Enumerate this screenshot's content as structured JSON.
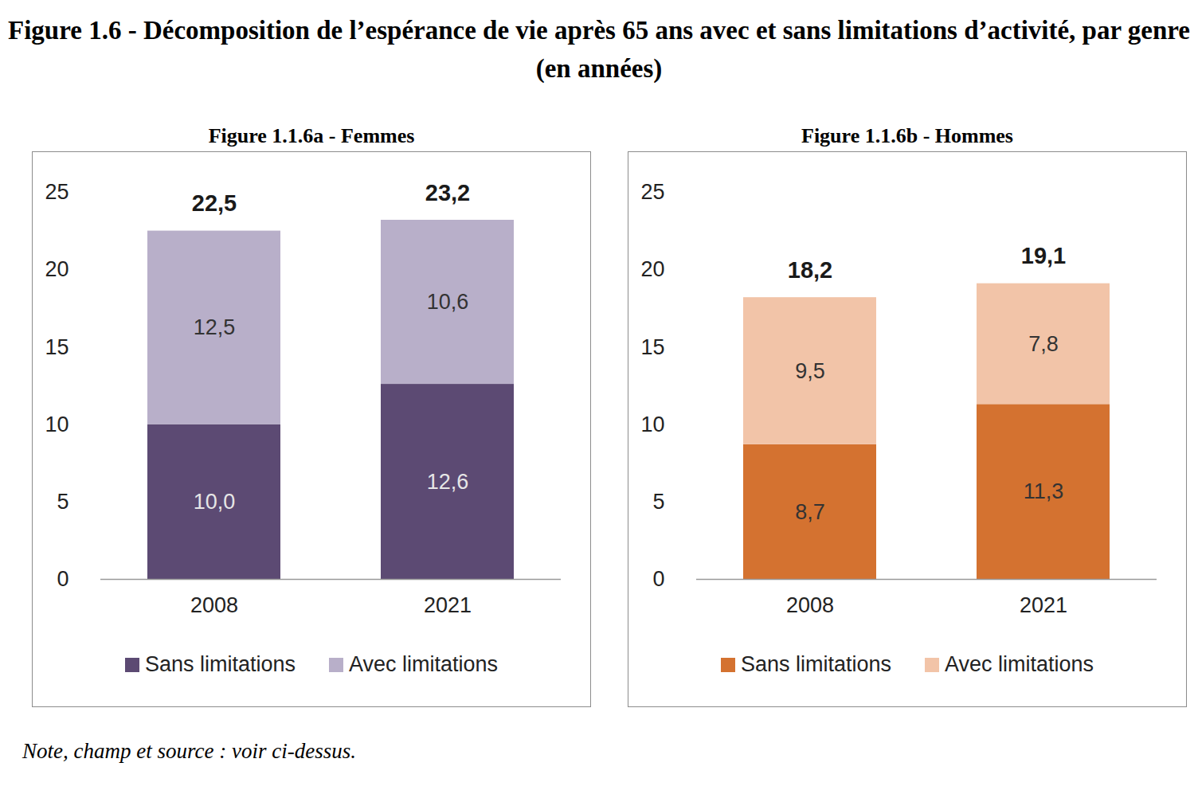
{
  "title": "Figure 1.6 - Décomposition de l’espérance de vie après 65 ans avec et sans limitations d’activité, par genre (en années)",
  "note": "Note, champ et source : voir ci-dessus.",
  "chart_data": [
    {
      "type": "bar",
      "title": "Figure 1.1.6a - Femmes",
      "stacked": true,
      "data_labels": true,
      "legend": "bottom",
      "categories": [
        "2008",
        "2021"
      ],
      "series": [
        {
          "name": "Sans limitations",
          "color": "#5c4a73",
          "values": [
            10.0,
            12.6
          ],
          "value_labels": [
            "10,0",
            "12,6"
          ]
        },
        {
          "name": "Avec limitations",
          "color": "#b8afc9",
          "values": [
            12.5,
            10.6
          ],
          "value_labels": [
            "12,5",
            "10,6"
          ]
        }
      ],
      "totals": [
        22.5,
        23.2
      ],
      "total_labels": [
        "22,5",
        "23,2"
      ],
      "ylim": [
        0,
        25
      ],
      "yticks": [
        0,
        5,
        10,
        15,
        20,
        25
      ],
      "grid": false
    },
    {
      "type": "bar",
      "title": "Figure 1.1.6b - Hommes",
      "stacked": true,
      "data_labels": true,
      "legend": "bottom",
      "categories": [
        "2008",
        "2021"
      ],
      "series": [
        {
          "name": "Sans limitations",
          "color": "#d47230",
          "values": [
            8.7,
            11.3
          ],
          "value_labels": [
            "8,7",
            "11,3"
          ]
        },
        {
          "name": "Avec limitations",
          "color": "#f2c4a8",
          "values": [
            9.5,
            7.8
          ],
          "value_labels": [
            "9,5",
            "7,8"
          ]
        }
      ],
      "totals": [
        18.2,
        19.1
      ],
      "total_labels": [
        "18,2",
        "19,1"
      ],
      "ylim": [
        0,
        25
      ],
      "yticks": [
        0,
        5,
        10,
        15,
        20,
        25
      ],
      "grid": false
    }
  ]
}
